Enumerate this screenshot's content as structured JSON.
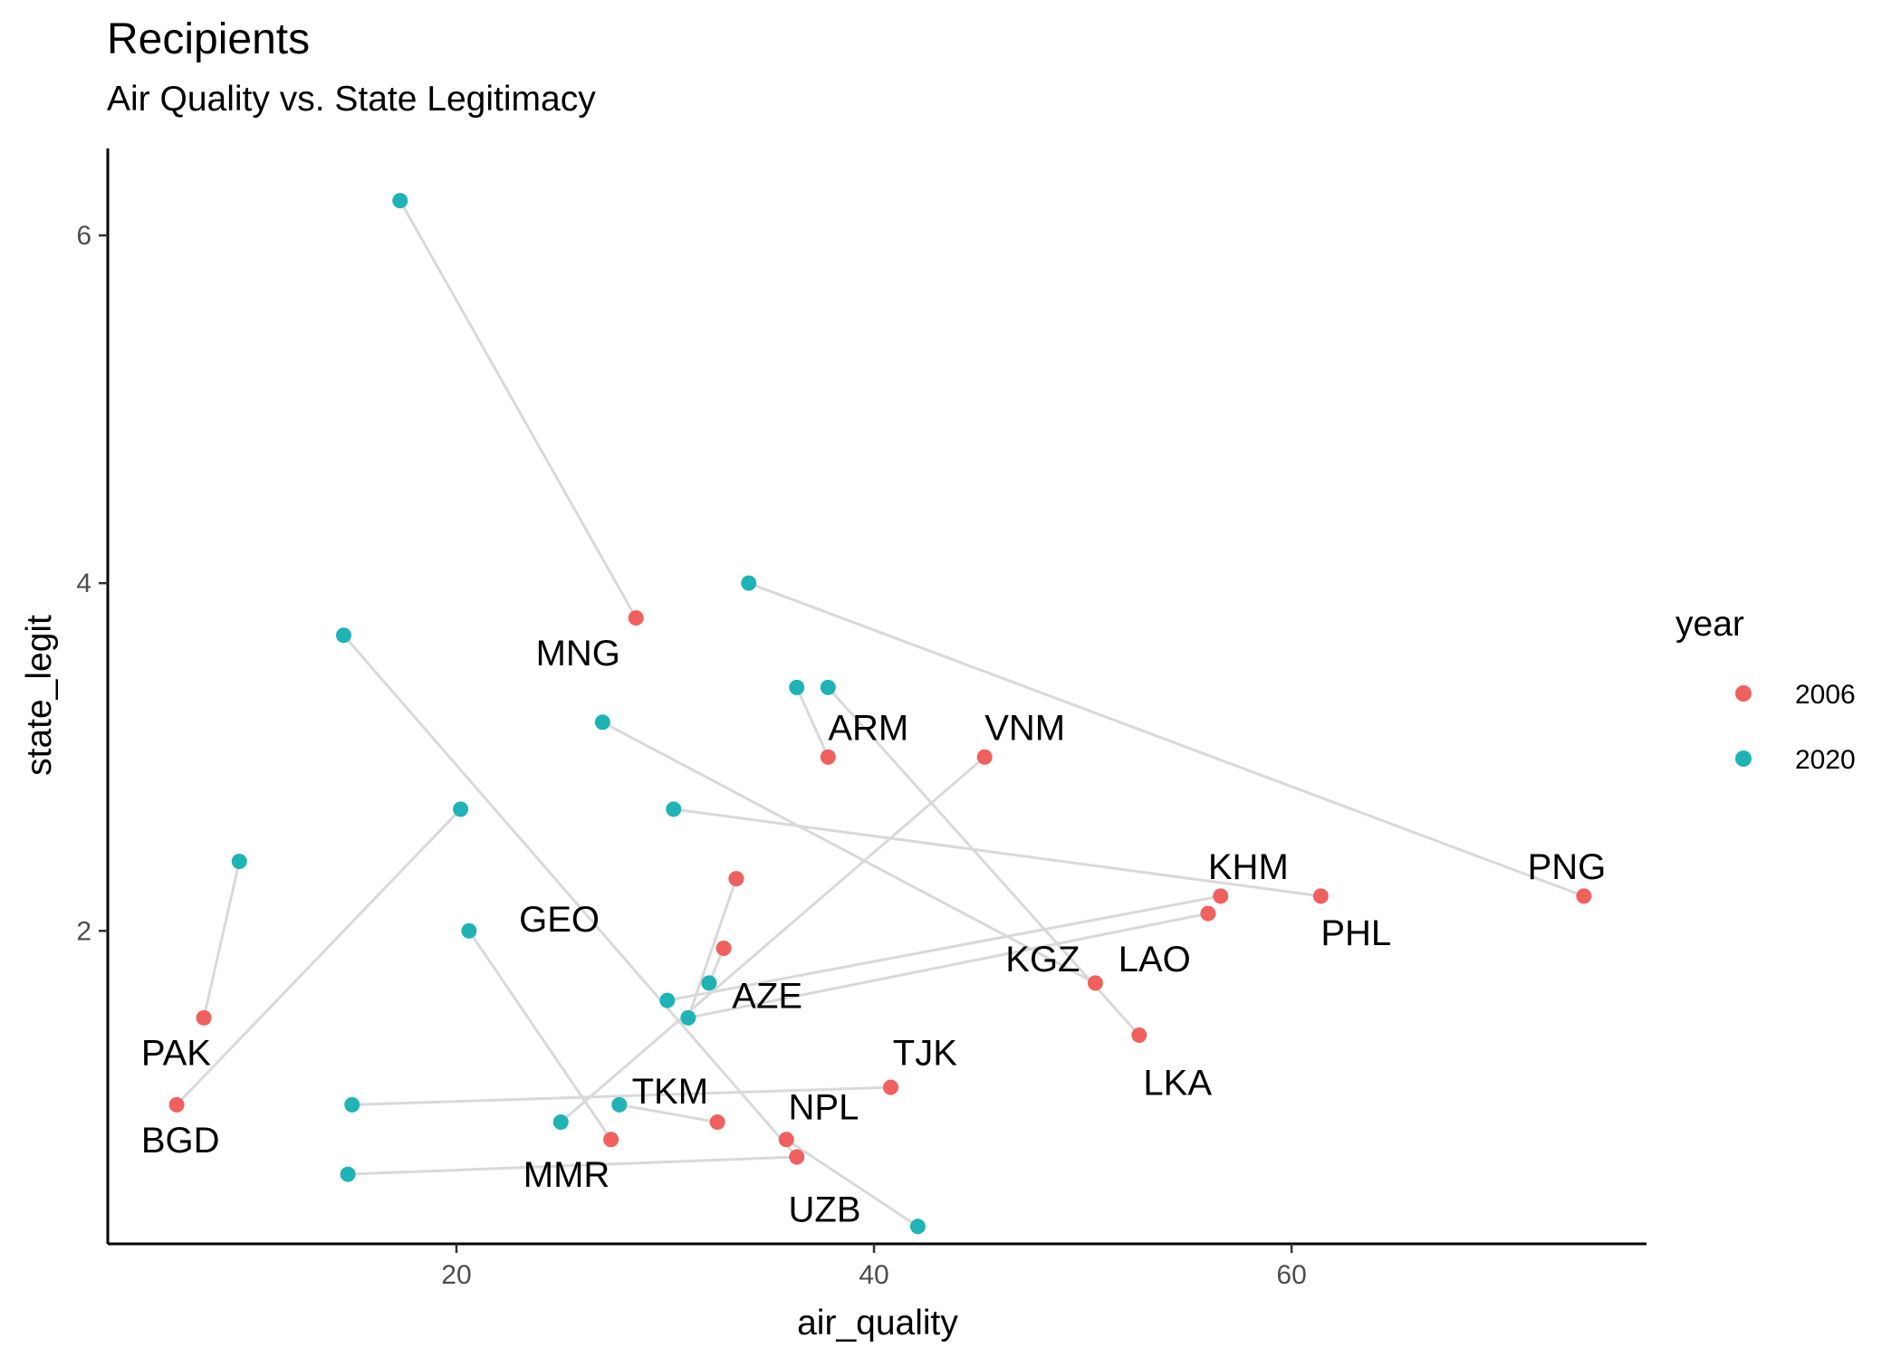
{
  "title": "Recipients",
  "subtitle": "Air Quality vs. State Legitimacy",
  "colors": {
    "2006": "#F0605D",
    "2020": "#1FB3B5",
    "connector": "#d9d9d9",
    "axis": "#000000"
  },
  "legend": {
    "title": "year",
    "entries": [
      "2006",
      "2020"
    ]
  },
  "chart_data": {
    "type": "scatter",
    "xlabel": "air_quality",
    "ylabel": "state_legit",
    "xlim": [
      3.3,
      77
    ],
    "ylim": [
      0.2,
      6.5
    ],
    "xticks": [
      20,
      40,
      60
    ],
    "yticks": [
      2,
      4,
      6
    ],
    "grid": false,
    "legend_position": "right",
    "series": [
      {
        "name": "2006",
        "points": [
          {
            "x": 28.6,
            "y": 3.8
          },
          {
            "x": 37.8,
            "y": 3.0
          },
          {
            "x": 45.3,
            "y": 3.0
          },
          {
            "x": 56.6,
            "y": 2.2
          },
          {
            "x": 61.4,
            "y": 2.2
          },
          {
            "x": 74.0,
            "y": 2.2
          },
          {
            "x": 33.4,
            "y": 2.3
          },
          {
            "x": 32.8,
            "y": 1.9
          },
          {
            "x": 56.0,
            "y": 2.1
          },
          {
            "x": 50.6,
            "y": 1.7
          },
          {
            "x": 52.7,
            "y": 1.4
          },
          {
            "x": 7.9,
            "y": 1.5
          },
          {
            "x": 6.6,
            "y": 1.0
          },
          {
            "x": 40.8,
            "y": 1.1
          },
          {
            "x": 32.5,
            "y": 0.9
          },
          {
            "x": 35.8,
            "y": 0.8
          },
          {
            "x": 27.4,
            "y": 0.8
          },
          {
            "x": 36.3,
            "y": 0.7
          }
        ]
      },
      {
        "name": "2020",
        "points": [
          {
            "x": 17.3,
            "y": 6.2
          },
          {
            "x": 34.0,
            "y": 4.0
          },
          {
            "x": 14.6,
            "y": 3.7
          },
          {
            "x": 36.3,
            "y": 3.4
          },
          {
            "x": 37.8,
            "y": 3.4
          },
          {
            "x": 27.0,
            "y": 3.2
          },
          {
            "x": 30.4,
            "y": 2.7
          },
          {
            "x": 20.2,
            "y": 2.7
          },
          {
            "x": 9.6,
            "y": 2.4
          },
          {
            "x": 20.6,
            "y": 2.0
          },
          {
            "x": 32.1,
            "y": 1.7
          },
          {
            "x": 30.1,
            "y": 1.6
          },
          {
            "x": 31.1,
            "y": 1.5
          },
          {
            "x": 15.0,
            "y": 1.0
          },
          {
            "x": 27.8,
            "y": 1.0
          },
          {
            "x": 25.0,
            "y": 0.9
          },
          {
            "x": 14.8,
            "y": 0.6
          },
          {
            "x": 42.1,
            "y": 0.3
          }
        ]
      }
    ],
    "connections": [
      {
        "from": [
          28.6,
          3.8
        ],
        "to": [
          17.3,
          6.2
        ]
      },
      {
        "from": [
          74.0,
          2.2
        ],
        "to": [
          34.0,
          4.0
        ]
      },
      {
        "from": [
          36.3,
          0.7
        ],
        "to": [
          14.6,
          3.7
        ]
      },
      {
        "from": [
          37.8,
          3.0
        ],
        "to": [
          36.3,
          3.4
        ]
      },
      {
        "from": [
          52.7,
          1.4
        ],
        "to": [
          37.8,
          3.4
        ]
      },
      {
        "from": [
          50.6,
          1.7
        ],
        "to": [
          27.0,
          3.2
        ]
      },
      {
        "from": [
          61.4,
          2.2
        ],
        "to": [
          30.4,
          2.7
        ]
      },
      {
        "from": [
          6.6,
          1.0
        ],
        "to": [
          20.2,
          2.7
        ]
      },
      {
        "from": [
          7.9,
          1.5
        ],
        "to": [
          9.6,
          2.4
        ]
      },
      {
        "from": [
          27.4,
          0.8
        ],
        "to": [
          20.6,
          2.0
        ]
      },
      {
        "from": [
          33.4,
          2.3
        ],
        "to": [
          31.1,
          1.5
        ]
      },
      {
        "from": [
          56.6,
          2.2
        ],
        "to": [
          30.1,
          1.6
        ]
      },
      {
        "from": [
          32.8,
          1.9
        ],
        "to": [
          32.1,
          1.7
        ]
      },
      {
        "from": [
          56.0,
          2.1
        ],
        "to": [
          31.1,
          1.5
        ]
      },
      {
        "from": [
          40.8,
          1.1
        ],
        "to": [
          15.0,
          1.0
        ]
      },
      {
        "from": [
          32.5,
          0.9
        ],
        "to": [
          27.8,
          1.0
        ]
      },
      {
        "from": [
          45.3,
          3.0
        ],
        "to": [
          25.0,
          0.9
        ]
      },
      {
        "from": [
          36.3,
          0.7
        ],
        "to": [
          14.8,
          0.6
        ]
      },
      {
        "from": [
          35.8,
          0.8
        ],
        "to": [
          42.1,
          0.3
        ]
      }
    ],
    "annotations": [
      {
        "text": "MNG",
        "x": 23.8,
        "y": 3.6
      },
      {
        "text": "ARM",
        "x": 37.8,
        "y": 3.17
      },
      {
        "text": "VNM",
        "x": 45.3,
        "y": 3.17
      },
      {
        "text": "KHM",
        "x": 56.0,
        "y": 2.37
      },
      {
        "text": "PNG",
        "x": 71.3,
        "y": 2.37
      },
      {
        "text": "PHL",
        "x": 61.4,
        "y": 1.99
      },
      {
        "text": "GEO",
        "x": 23.0,
        "y": 2.07
      },
      {
        "text": "KGZ",
        "x": 46.3,
        "y": 1.84
      },
      {
        "text": "LAO",
        "x": 51.7,
        "y": 1.84
      },
      {
        "text": "AZE",
        "x": 33.2,
        "y": 1.63
      },
      {
        "text": "LKA",
        "x": 52.9,
        "y": 1.13
      },
      {
        "text": "PAK",
        "x": 4.9,
        "y": 1.3
      },
      {
        "text": "TJK",
        "x": 40.9,
        "y": 1.3
      },
      {
        "text": "TKM",
        "x": 28.4,
        "y": 1.08
      },
      {
        "text": "NPL",
        "x": 35.9,
        "y": 0.99
      },
      {
        "text": "BGD",
        "x": 4.9,
        "y": 0.8
      },
      {
        "text": "MMR",
        "x": 23.2,
        "y": 0.6
      },
      {
        "text": "UZB",
        "x": 35.9,
        "y": 0.4
      }
    ]
  }
}
